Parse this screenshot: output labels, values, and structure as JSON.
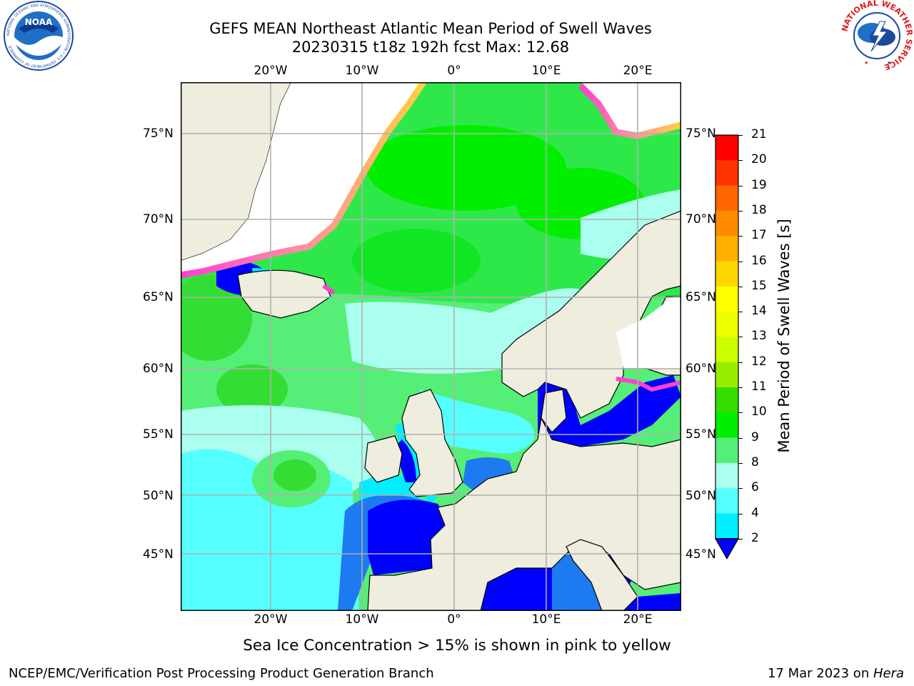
{
  "title": {
    "line1": "GEFS MEAN Northeast Atlantic Mean Period of Swell Waves",
    "line2": "20230315 t18z 192h fcst   Max: 12.68"
  },
  "map": {
    "lon_labels": [
      "20°W",
      "10°W",
      "0°",
      "10°E",
      "20°E"
    ],
    "lat_labels": [
      "75°N",
      "70°N",
      "65°N",
      "60°N",
      "55°N",
      "50°N",
      "45°N"
    ],
    "colors": {
      "land": "#efedde",
      "ice": "#ffffff",
      "grid": "#b0b0b0",
      "coast": "#000000"
    }
  },
  "colorbar": {
    "label": "Mean Period of Swell Waves [s]",
    "ticks": [
      "21",
      "20",
      "19",
      "18",
      "17",
      "16",
      "15",
      "14",
      "13",
      "12",
      "11",
      "10",
      "9",
      "8",
      "6",
      "4",
      "2"
    ],
    "colors": [
      "#ff0000",
      "#ff3300",
      "#ff6600",
      "#ff8c00",
      "#ffb000",
      "#ffd700",
      "#ffff00",
      "#eeff00",
      "#ccff00",
      "#99ee00",
      "#33dd00",
      "#00ee00",
      "#55ee77",
      "#aaffee",
      "#55ffff",
      "#00eeff",
      "#0077ff"
    ],
    "extend_color": "#0000ff"
  },
  "note": "Sea Ice Concentration > 15% is shown in pink to yellow",
  "footer": {
    "left": "NCEP/EMC/Verification Post Processing Product Generation Branch",
    "right_date": "17 Mar 2023 on ",
    "right_host": "Hera"
  },
  "logos": {
    "noaa": "NOAA",
    "noaa_ring": "NATIONAL OCEANIC AND ATMOSPHERIC ADMINISTRATION • U.S. DEPARTMENT OF COMMERCE",
    "nws_ring": "NATIONAL WEATHER SERVICE"
  }
}
